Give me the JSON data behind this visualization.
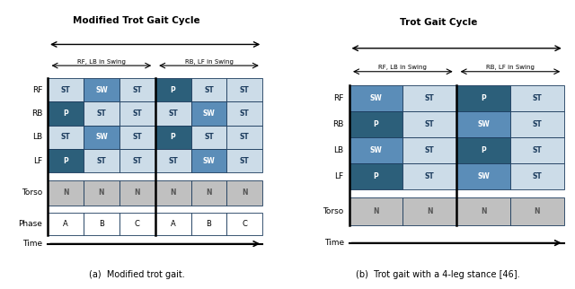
{
  "fig_width": 6.4,
  "fig_height": 3.22,
  "dpi": 100,
  "left_title": "Modified Trot Gait Cycle",
  "right_title": "Trot Gait Cycle",
  "caption_left": "(a)  Modified trot gait.",
  "caption_right": "(b)  Trot gait with a 4-leg stance [46].",
  "color_ST": "#ccdce8",
  "color_SW": "#5b8db8",
  "color_P": "#2c5f7a",
  "color_N": "#c0c0c0",
  "color_border": "#1a3a5c",
  "left_half_label": "RF, LB in Swing",
  "right_half_label": "RB, LF in Swing",
  "left_diagram": {
    "rows": [
      "RF",
      "RB",
      "LB",
      "LF"
    ],
    "n_half1": 3,
    "n_half2": 3,
    "show_phase": true,
    "half1_cells": {
      "RF": [
        "ST",
        "SW",
        "ST"
      ],
      "RB": [
        "P",
        "ST",
        "ST"
      ],
      "LB": [
        "ST",
        "SW",
        "ST"
      ],
      "LF": [
        "P",
        "ST",
        "ST"
      ],
      "torso": [
        "N",
        "N",
        "N"
      ],
      "phase": [
        "A",
        "B",
        "C"
      ]
    },
    "half2_cells": {
      "RF": [
        "P",
        "ST",
        "ST"
      ],
      "RB": [
        "ST",
        "SW",
        "ST"
      ],
      "LB": [
        "P",
        "ST",
        "ST"
      ],
      "LF": [
        "ST",
        "SW",
        "ST"
      ],
      "torso": [
        "N",
        "N",
        "N"
      ],
      "phase": [
        "A",
        "B",
        "C"
      ]
    }
  },
  "right_diagram": {
    "rows": [
      "RF",
      "RB",
      "LB",
      "LF"
    ],
    "n_half1": 2,
    "n_half2": 2,
    "show_phase": false,
    "half1_cells": {
      "RF": [
        "SW",
        "ST"
      ],
      "RB": [
        "P",
        "ST"
      ],
      "LB": [
        "SW",
        "ST"
      ],
      "LF": [
        "P",
        "ST"
      ],
      "torso": [
        "N",
        "N"
      ]
    },
    "half2_cells": {
      "RF": [
        "P",
        "ST"
      ],
      "RB": [
        "SW",
        "ST"
      ],
      "LB": [
        "P",
        "ST"
      ],
      "LF": [
        "SW",
        "ST"
      ],
      "torso": [
        "N",
        "N"
      ]
    }
  }
}
